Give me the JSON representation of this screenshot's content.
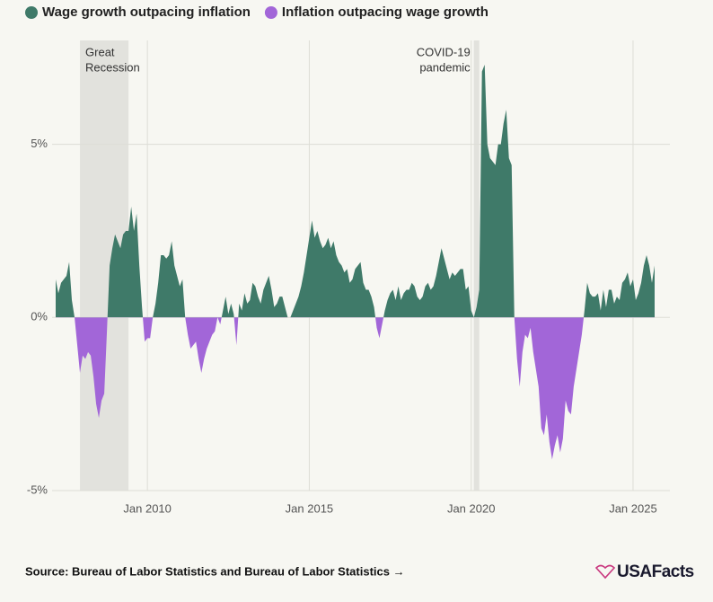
{
  "chart_data": {
    "type": "area",
    "legend": [
      {
        "name": "Wage growth outpacing inflation",
        "color": "#3f7a69"
      },
      {
        "name": "Inflation outpacing wage growth",
        "color": "#a266d8"
      }
    ],
    "x": [
      "2007-03",
      "2007-04",
      "2007-05",
      "2007-07",
      "2007-08",
      "2007-09",
      "2007-10",
      "2007-11",
      "2007-12",
      "2008-01",
      "2008-02",
      "2008-03",
      "2008-04",
      "2008-05",
      "2008-06",
      "2008-07",
      "2008-08",
      "2008-09",
      "2008-10",
      "2008-11",
      "2008-12",
      "2009-01",
      "2009-02",
      "2009-03",
      "2009-04",
      "2009-05",
      "2009-06",
      "2009-07",
      "2009-08",
      "2009-09",
      "2009-10",
      "2009-11",
      "2009-12",
      "2010-01",
      "2010-02",
      "2010-03",
      "2010-04",
      "2010-05",
      "2010-06",
      "2010-07",
      "2010-08",
      "2010-09",
      "2010-10",
      "2010-11",
      "2010-12",
      "2011-01",
      "2011-02",
      "2011-03",
      "2011-04",
      "2011-05",
      "2011-06",
      "2011-07",
      "2011-08",
      "2011-09",
      "2011-10",
      "2011-11",
      "2011-12",
      "2012-01",
      "2012-02",
      "2012-03",
      "2012-04",
      "2012-05",
      "2012-06",
      "2012-07",
      "2012-08",
      "2012-09",
      "2012-10",
      "2012-11",
      "2012-12",
      "2013-01",
      "2013-02",
      "2013-03",
      "2013-04",
      "2013-05",
      "2013-06",
      "2013-07",
      "2013-08",
      "2013-09",
      "2013-10",
      "2013-11",
      "2013-12",
      "2014-01",
      "2014-02",
      "2014-03",
      "2014-04",
      "2014-05",
      "2014-06",
      "2014-07",
      "2014-08",
      "2014-09",
      "2014-10",
      "2014-11",
      "2014-12",
      "2015-01",
      "2015-02",
      "2015-03",
      "2015-04",
      "2015-05",
      "2015-06",
      "2015-07",
      "2015-08",
      "2015-09",
      "2015-10",
      "2015-11",
      "2015-12",
      "2016-01",
      "2016-02",
      "2016-03",
      "2016-04",
      "2016-05",
      "2016-06",
      "2016-07",
      "2016-08",
      "2016-09",
      "2016-10",
      "2016-11",
      "2016-12",
      "2017-01",
      "2017-02",
      "2017-03",
      "2017-04",
      "2017-05",
      "2017-06",
      "2017-07",
      "2017-08",
      "2017-09",
      "2017-10",
      "2017-11",
      "2017-12",
      "2018-01",
      "2018-02",
      "2018-03",
      "2018-04",
      "2018-05",
      "2018-06",
      "2018-07",
      "2018-08",
      "2018-09",
      "2018-10",
      "2018-11",
      "2018-12",
      "2019-01",
      "2019-02",
      "2019-03",
      "2019-04",
      "2019-05",
      "2019-06",
      "2019-07",
      "2019-08",
      "2019-09",
      "2019-10",
      "2019-11",
      "2019-12",
      "2020-01",
      "2020-02",
      "2020-03",
      "2020-04",
      "2020-05",
      "2020-06",
      "2020-07",
      "2020-08",
      "2020-09",
      "2020-10",
      "2020-11",
      "2020-12",
      "2021-01",
      "2021-02",
      "2021-03",
      "2021-04",
      "2021-05",
      "2021-06",
      "2021-07",
      "2021-08",
      "2021-09",
      "2021-10",
      "2021-11",
      "2021-12",
      "2022-01",
      "2022-02",
      "2022-03",
      "2022-04",
      "2022-05",
      "2022-06",
      "2022-07",
      "2022-08",
      "2022-09",
      "2022-10",
      "2022-11",
      "2022-12",
      "2023-01",
      "2023-02",
      "2023-03",
      "2023-04",
      "2023-05",
      "2023-06",
      "2023-07",
      "2023-08",
      "2023-09",
      "2023-10",
      "2023-11",
      "2023-12",
      "2024-01",
      "2024-02",
      "2024-03",
      "2024-04",
      "2024-05",
      "2024-06",
      "2024-07",
      "2024-08",
      "2024-09",
      "2024-10",
      "2024-11",
      "2024-12",
      "2025-01",
      "2025-02",
      "2025-03",
      "2025-04",
      "2025-05",
      "2025-06",
      "2025-07",
      "2025-08",
      "2025-09"
    ],
    "values": [
      1.1,
      0.7,
      1.0,
      1.2,
      1.6,
      0.5,
      0.0,
      -0.8,
      -1.6,
      -1.1,
      -1.2,
      -1.0,
      -1.1,
      -1.7,
      -2.5,
      -2.9,
      -2.4,
      -2.2,
      -0.4,
      1.5,
      2.0,
      2.4,
      2.2,
      2.0,
      2.4,
      2.5,
      2.5,
      3.2,
      2.5,
      3.0,
      1.5,
      0.3,
      -0.7,
      -0.6,
      -0.6,
      0.0,
      0.4,
      1.0,
      1.8,
      1.8,
      1.7,
      1.8,
      2.2,
      1.5,
      1.2,
      0.9,
      1.1,
      0.0,
      -0.5,
      -0.9,
      -0.8,
      -0.7,
      -1.2,
      -1.6,
      -1.2,
      -0.9,
      -0.7,
      -0.5,
      -0.4,
      0.0,
      -0.2,
      0.2,
      0.6,
      0.1,
      0.4,
      0.1,
      -0.8,
      0.4,
      0.2,
      0.7,
      0.4,
      0.5,
      1.0,
      0.9,
      0.6,
      0.4,
      0.8,
      1.0,
      1.2,
      0.8,
      0.3,
      0.4,
      0.6,
      0.6,
      0.3,
      0.0,
      0.0,
      0.2,
      0.4,
      0.6,
      0.9,
      1.3,
      1.8,
      2.3,
      2.8,
      2.3,
      2.5,
      2.2,
      2.0,
      2.1,
      2.3,
      2.0,
      2.2,
      1.8,
      1.6,
      1.5,
      1.3,
      1.4,
      1.0,
      1.1,
      1.4,
      1.5,
      1.6,
      1.0,
      0.8,
      0.8,
      0.6,
      0.3,
      -0.3,
      -0.6,
      -0.2,
      0.2,
      0.5,
      0.7,
      0.8,
      0.5,
      0.9,
      0.5,
      0.7,
      0.8,
      0.8,
      1.0,
      0.9,
      0.6,
      0.5,
      0.6,
      0.9,
      1.0,
      0.8,
      0.9,
      1.2,
      1.6,
      2.0,
      1.7,
      1.4,
      1.1,
      1.3,
      1.2,
      1.3,
      1.4,
      1.4,
      0.8,
      0.9,
      0.2,
      0.0,
      0.3,
      0.8,
      7.1,
      7.3,
      5.0,
      4.6,
      4.5,
      4.4,
      5.0,
      5.0,
      5.6,
      6.0,
      4.6,
      4.4,
      0.0,
      -1.2,
      -2.0,
      -1.0,
      -0.5,
      -0.6,
      -0.3,
      -1.0,
      -1.5,
      -2.0,
      -3.2,
      -3.4,
      -2.8,
      -3.6,
      -4.1,
      -3.7,
      -3.4,
      -3.9,
      -3.5,
      -2.4,
      -2.7,
      -2.8,
      -2.0,
      -1.5,
      -1.0,
      -0.5,
      0.2,
      1.0,
      0.7,
      0.6,
      0.6,
      0.7,
      0.2,
      0.8,
      0.3,
      0.8,
      0.8,
      0.4,
      0.6,
      0.5,
      1.0,
      1.1,
      1.3,
      0.9,
      1.1,
      0.5,
      0.7,
      1.0,
      1.5,
      1.8,
      1.5,
      1.0,
      1.5
    ],
    "xlim": [
      "2007-03",
      "2025-09"
    ],
    "xticks": [
      {
        "value": "2010-01",
        "label": "Jan 2010"
      },
      {
        "value": "2015-01",
        "label": "Jan 2015"
      },
      {
        "value": "2020-01",
        "label": "Jan 2020"
      },
      {
        "value": "2025-01",
        "label": "Jan 2025"
      }
    ],
    "ylim": [
      -5,
      8
    ],
    "yticks": [
      {
        "value": 5,
        "label": "5%"
      },
      {
        "value": 0,
        "label": "0%"
      },
      {
        "value": -5,
        "label": "-5%"
      }
    ],
    "grid": true,
    "bands": [
      {
        "label": [
          "Great",
          "Recession"
        ],
        "start": "2007-12",
        "end": "2009-06"
      },
      {
        "label": [
          "COVID-19",
          "pandemic"
        ],
        "start": "2020-02",
        "end": "2020-04"
      }
    ],
    "source": "Source: Bureau of Labor Statistics and Bureau of Labor Statistics →",
    "brand": "USAFacts"
  }
}
